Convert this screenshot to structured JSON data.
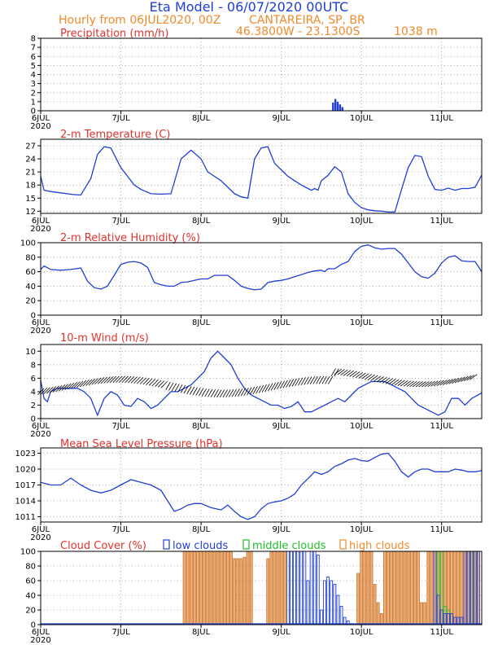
{
  "header": {
    "title": "Eta Model - 06/07/2020 00UTC",
    "line2_left": "Hourly from 06JUL2020, 00Z",
    "line2_right": "CANTAREIRA, SP, BR",
    "line3_coords": "46.3800W - 23.1300S",
    "line3_elev": "1038  m"
  },
  "colors": {
    "line": "#1f3fd6",
    "title": "#1f3fd6",
    "info": "#f08a2a",
    "panel_title": "#e5322d",
    "low_clouds": "#1f3fd6",
    "middle_clouds": "#1fbf2a",
    "high_clouds": "#f3b07b",
    "high_clouds_edge": "#c8782f",
    "grid": "#9a9a9a"
  },
  "chart_data": [
    {
      "type": "bar",
      "title": "Precipitation (mm/h)",
      "xlabel": "",
      "ylabel": "mm/h",
      "x_tick_labels": [
        "6JUL",
        "7JUL",
        "8JUL",
        "9JUL",
        "10JUL",
        "11JUL"
      ],
      "x_year_label": "2020",
      "xlim_hours": [
        0,
        132
      ],
      "ylim": [
        0,
        8
      ],
      "yticks": [
        0,
        1,
        2,
        3,
        4,
        5,
        6,
        7,
        8
      ],
      "grid": true,
      "bars": [
        {
          "hour": 87.5,
          "value": 0.9
        },
        {
          "hour": 88.2,
          "value": 1.3
        },
        {
          "hour": 88.9,
          "value": 1.0
        },
        {
          "hour": 89.6,
          "value": 0.7
        },
        {
          "hour": 90.3,
          "value": 0.4
        }
      ]
    },
    {
      "type": "line",
      "title": "2-m Temperature (C)",
      "xlabel": "",
      "ylabel": "C",
      "x_tick_labels": [
        "6JUL",
        "7JUL",
        "8JUL",
        "9JUL",
        "10JUL",
        "11JUL"
      ],
      "x_year_label": "2020",
      "xlim_hours": [
        0,
        132
      ],
      "ylim": [
        11.5,
        28.5
      ],
      "yticks": [
        12,
        15,
        18,
        21,
        24,
        27
      ],
      "grid": true,
      "series": [
        {
          "name": "2-m Temperature",
          "x": [
            0,
            1,
            3,
            6,
            10,
            12,
            15,
            17,
            19,
            21,
            24,
            26,
            28,
            30,
            33,
            36,
            39,
            42,
            45,
            48,
            50,
            52,
            54,
            56,
            58,
            60,
            62,
            64,
            66,
            68,
            70,
            72,
            74,
            76,
            78,
            80,
            81,
            82,
            83,
            84,
            86,
            88,
            90,
            92,
            94,
            96,
            98,
            100,
            102,
            104,
            106,
            108,
            110,
            112,
            114,
            116,
            118,
            120,
            122,
            124,
            126,
            128,
            130,
            132
          ],
          "y": [
            20,
            16.8,
            16.5,
            16.2,
            15.8,
            15.7,
            19.5,
            25,
            26.8,
            26.5,
            22,
            20,
            18,
            17,
            16,
            15.9,
            16,
            24,
            26,
            24,
            21,
            20,
            19,
            17.5,
            16,
            15.3,
            15,
            24,
            26.5,
            26.8,
            23,
            21.5,
            20,
            19,
            18,
            17.2,
            16.8,
            17.2,
            16.8,
            19,
            20.2,
            22.2,
            21,
            16,
            14,
            12.8,
            12.3,
            12.1,
            12,
            11.8,
            11.8,
            17,
            22,
            24.8,
            24.5,
            20,
            17,
            16.8,
            17.3,
            16.8,
            17.2,
            17.2,
            17.5,
            20.3
          ]
        }
      ]
    },
    {
      "type": "line",
      "title": "2-m Relative Humidity (%)",
      "xlabel": "",
      "ylabel": "%",
      "x_tick_labels": [
        "6JUL",
        "7JUL",
        "8JUL",
        "9JUL",
        "10JUL",
        "11JUL"
      ],
      "x_year_label": "2020",
      "xlim_hours": [
        0,
        132
      ],
      "ylim": [
        0,
        100
      ],
      "yticks": [
        0,
        20,
        40,
        60,
        80,
        100
      ],
      "grid": true,
      "series": [
        {
          "name": "2-m Relative Humidity",
          "x": [
            0,
            1,
            3,
            6,
            9,
            12,
            14,
            16,
            18,
            20,
            22,
            24,
            26,
            28,
            30,
            32,
            34,
            36,
            38,
            40,
            42,
            44,
            46,
            48,
            50,
            52,
            54,
            56,
            58,
            60,
            62,
            64,
            66,
            68,
            70,
            72,
            74,
            76,
            78,
            80,
            82,
            84,
            85,
            86,
            88,
            90,
            92,
            94,
            96,
            98,
            100,
            102,
            104,
            106,
            108,
            110,
            112,
            114,
            116,
            118,
            120,
            122,
            124,
            126,
            128,
            130,
            132
          ],
          "y": [
            63,
            68,
            63,
            62,
            63,
            65,
            47,
            38,
            36,
            40,
            55,
            70,
            73,
            74,
            72,
            66,
            45,
            42,
            40,
            40,
            45,
            46,
            48,
            50,
            50,
            55,
            55,
            55,
            48,
            40,
            37,
            35,
            36,
            45,
            47,
            48,
            50,
            53,
            56,
            59,
            61,
            62,
            60,
            64,
            64,
            70,
            74,
            88,
            95,
            97,
            93,
            91,
            92,
            92,
            84,
            72,
            60,
            53,
            51,
            58,
            72,
            80,
            82,
            75,
            74,
            74,
            60
          ]
        }
      ]
    },
    {
      "type": "line",
      "title": "10-m Wind (m/s)",
      "xlabel": "",
      "ylabel": "m/s",
      "x_tick_labels": [
        "6JUL",
        "7JUL",
        "8JUL",
        "9JUL",
        "10JUL",
        "11JUL"
      ],
      "x_year_label": "2020",
      "xlim_hours": [
        0,
        132
      ],
      "ylim": [
        0,
        11
      ],
      "yticks": [
        0,
        2,
        4,
        6,
        8,
        10
      ],
      "grid": true,
      "wind_vectors": "black arrows along the speed curve showing direction",
      "series": [
        {
          "name": "10-m Wind speed",
          "x": [
            0,
            1,
            2,
            3,
            5,
            8,
            11,
            13,
            15,
            17,
            19,
            21,
            23,
            25,
            27,
            29,
            31,
            33,
            35,
            37,
            39,
            41,
            43,
            45,
            47,
            49,
            51,
            53,
            55,
            57,
            59,
            61,
            63,
            65,
            67,
            69,
            71,
            73,
            75,
            77,
            79,
            81,
            83,
            85,
            87,
            89,
            91,
            93,
            95,
            97,
            99,
            101,
            103,
            105,
            107,
            109,
            111,
            113,
            115,
            117,
            119,
            121,
            123,
            125,
            127,
            129,
            132
          ],
          "y": [
            5.7,
            3,
            2.5,
            4,
            4.5,
            4.5,
            4.5,
            4,
            3,
            0.5,
            3,
            4,
            3.5,
            2,
            1.8,
            3,
            2.5,
            1.5,
            2,
            3,
            4,
            4,
            4.5,
            5,
            6,
            7,
            9,
            10,
            9,
            8,
            6,
            4.5,
            3.5,
            3,
            2.5,
            2,
            2,
            1.5,
            1.8,
            2.5,
            1,
            1,
            1.5,
            2,
            2.5,
            3,
            2.5,
            3.5,
            4.5,
            5,
            5.5,
            5.5,
            5.5,
            5,
            4.5,
            4,
            3,
            2,
            1.5,
            1,
            0.5,
            1,
            3,
            3,
            2,
            3,
            3.8
          ]
        }
      ]
    },
    {
      "type": "line",
      "title": "Mean Sea Level Pressure (hPa)",
      "xlabel": "",
      "ylabel": "hPa",
      "x_tick_labels": [
        "6JUL",
        "7JUL",
        "8JUL",
        "9JUL",
        "10JUL",
        "11JUL"
      ],
      "x_year_label": "2020",
      "xlim_hours": [
        0,
        132
      ],
      "ylim": [
        1010,
        1024
      ],
      "yticks": [
        1011,
        1014,
        1017,
        1020,
        1023
      ],
      "grid": true,
      "series": [
        {
          "name": "MSLP",
          "x": [
            0,
            3,
            6,
            9,
            12,
            15,
            18,
            21,
            24,
            27,
            30,
            33,
            36,
            38,
            40,
            42,
            44,
            46,
            48,
            51,
            54,
            56,
            58,
            60,
            62,
            64,
            66,
            68,
            70,
            72,
            74,
            76,
            78,
            80,
            82,
            84,
            86,
            88,
            90,
            92,
            94,
            96,
            98,
            100,
            102,
            104,
            106,
            108,
            110,
            112,
            114,
            116,
            118,
            120,
            122,
            124,
            126,
            128,
            130,
            132
          ],
          "y": [
            1017.5,
            1017,
            1017,
            1018.3,
            1017,
            1016,
            1015.5,
            1016,
            1017,
            1018,
            1017.5,
            1017,
            1016,
            1014,
            1012,
            1012.5,
            1013.2,
            1013.5,
            1013.5,
            1012.7,
            1012.3,
            1013.2,
            1012,
            1011,
            1010.5,
            1011,
            1012.5,
            1013.5,
            1013.8,
            1014,
            1014.5,
            1015.3,
            1017,
            1018.2,
            1019.5,
            1019,
            1019.5,
            1020.5,
            1021,
            1021.7,
            1022,
            1021.6,
            1021.5,
            1022.2,
            1022.8,
            1023,
            1021.5,
            1019.5,
            1018.5,
            1019.5,
            1020,
            1020,
            1019.5,
            1019.5,
            1019.5,
            1020,
            1019.8,
            1019.5,
            1019.5,
            1019.7
          ]
        }
      ]
    },
    {
      "type": "bar",
      "title": "Cloud Cover (%)",
      "xlabel": "",
      "ylabel": "%",
      "x_tick_labels": [
        "6JUL",
        "7JUL",
        "8JUL",
        "9JUL",
        "10JUL",
        "11JUL"
      ],
      "x_year_label": "2020",
      "xlim_hours": [
        0,
        132
      ],
      "ylim": [
        0,
        100
      ],
      "yticks": [
        0,
        20,
        40,
        60,
        80,
        100
      ],
      "grid": true,
      "legend": [
        "low clouds",
        "middle clouds",
        "high clouds"
      ],
      "legend_position": "top",
      "series": [
        {
          "name": "high clouds",
          "hours": [
            43,
            44,
            45,
            46,
            47,
            48,
            49,
            50,
            51,
            52,
            53,
            54,
            55,
            56,
            57,
            58,
            59,
            60,
            61,
            62,
            63,
            68,
            69,
            70,
            71,
            72,
            73,
            95,
            96,
            97,
            98,
            99,
            100,
            101,
            102,
            103,
            104,
            105,
            106,
            107,
            108,
            109,
            110,
            111,
            112,
            113,
            114,
            115,
            116,
            117,
            118,
            119,
            120,
            121,
            122,
            123,
            124,
            125,
            126,
            127,
            128,
            129,
            130,
            131
          ],
          "values": [
            100,
            100,
            100,
            100,
            100,
            100,
            100,
            100,
            100,
            100,
            100,
            100,
            100,
            100,
            100,
            90,
            90,
            90,
            92,
            100,
            100,
            90,
            100,
            100,
            100,
            100,
            100,
            70,
            100,
            100,
            100,
            100,
            55,
            30,
            15,
            100,
            100,
            100,
            100,
            100,
            100,
            100,
            100,
            100,
            100,
            100,
            30,
            30,
            100,
            100,
            100,
            100,
            100,
            100,
            100,
            100,
            100,
            100,
            100,
            100,
            100,
            100,
            100,
            100
          ]
        },
        {
          "name": "middle clouds",
          "hours": [
            119,
            120,
            121,
            122,
            123,
            129,
            130
          ],
          "values": [
            100,
            100,
            25,
            20,
            15,
            100,
            100
          ]
        },
        {
          "name": "low clouds",
          "hours": [
            74,
            75,
            76,
            77,
            78,
            79,
            80,
            81,
            82,
            83,
            84,
            85,
            86,
            87,
            88,
            89,
            90,
            91,
            92,
            118,
            119,
            120,
            121,
            122,
            123,
            124,
            125,
            126,
            127,
            128,
            129,
            130,
            131
          ],
          "values": [
            100,
            100,
            100,
            100,
            100,
            100,
            60,
            100,
            100,
            95,
            20,
            60,
            65,
            60,
            55,
            40,
            25,
            10,
            5,
            100,
            40,
            20,
            15,
            15,
            15,
            10,
            10,
            10,
            100,
            100,
            100,
            100,
            100
          ]
        }
      ]
    }
  ]
}
